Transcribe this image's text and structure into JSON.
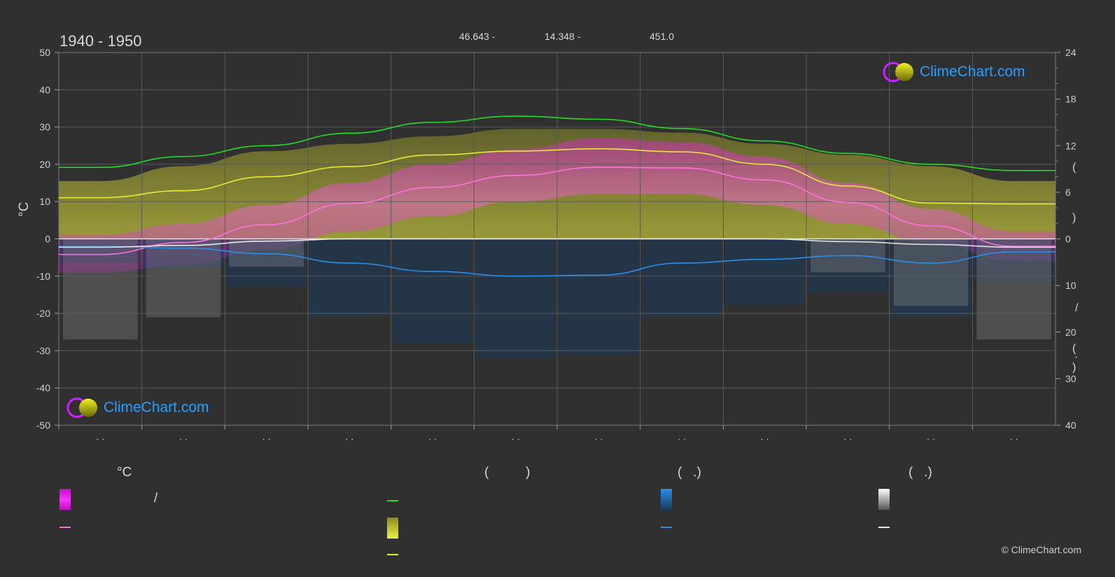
{
  "header": {
    "period": "1940 - 1950",
    "lat": "46.643 -",
    "lon": "14.348 -",
    "elevation": "451.0"
  },
  "axes": {
    "left_label": "°C",
    "left_ticks": [
      "50",
      "40",
      "30",
      "20",
      "10",
      "0",
      "-10",
      "-20",
      "-30",
      "-40",
      "-50"
    ],
    "right_upper_ticks": [
      "24",
      "18",
      "12",
      "6",
      "0"
    ],
    "right_lower_ticks": [
      "10",
      "20",
      "30",
      "40"
    ],
    "right_labels": [
      "(",
      ")",
      "(",
      ")",
      "/",
      "(",
      "·",
      ")"
    ],
    "month_labels": [
      "· ·",
      "· ·",
      "· ·",
      "· ·",
      "· ·",
      "· ·",
      "· ·",
      "· ·",
      "· ·",
      "· ·",
      "· ·",
      "· ·"
    ]
  },
  "legend": {
    "temp_header": "°C",
    "sun_header": "(          )",
    "rain_header": "(   .)",
    "snow_header": "(   .)",
    "temp_slash": "/"
  },
  "branding": {
    "logo_text": "ClimeChart.com",
    "copyright": "© ClimeChart.com"
  },
  "colors": {
    "background": "#303030",
    "daylight": "#22dd22",
    "sunshine": "#e8e83a",
    "temp_mean": "#ff70e0",
    "temp_band": "#e020d0",
    "rain": "#2a8ee8",
    "snow": "#e8e8e8",
    "logo": "#2a9fff"
  },
  "chart_data": {
    "type": "line",
    "x": [
      "1",
      "2",
      "3",
      "4",
      "5",
      "6",
      "7",
      "8",
      "9",
      "10",
      "11",
      "12"
    ],
    "y_left_range": [
      -50,
      50
    ],
    "y_right_upper_range": [
      0,
      24
    ],
    "y_right_lower_range": [
      0,
      40
    ],
    "grid": true,
    "series": [
      {
        "name": "daylight",
        "axis": "right_upper",
        "values": [
          9.2,
          10.6,
          12.0,
          13.6,
          15.0,
          15.8,
          15.4,
          14.2,
          12.6,
          11.0,
          9.6,
          8.8
        ]
      },
      {
        "name": "sunshine",
        "axis": "right_upper",
        "values": [
          5.3,
          6.2,
          8.0,
          9.3,
          10.8,
          11.3,
          11.6,
          11.2,
          9.6,
          6.8,
          4.6,
          4.5
        ]
      },
      {
        "name": "temp_mean",
        "axis": "left",
        "values": [
          -4.2,
          -1.0,
          3.8,
          9.5,
          13.8,
          17.0,
          19.2,
          19.0,
          15.8,
          9.8,
          3.5,
          -2.0
        ]
      },
      {
        "name": "rain",
        "axis": "right_lower",
        "values": [
          1.6,
          2.0,
          3.2,
          5.2,
          7.0,
          8.0,
          7.8,
          5.2,
          4.4,
          3.6,
          5.2,
          2.8
        ]
      },
      {
        "name": "snow",
        "axis": "right_lower",
        "values": [
          1.8,
          1.4,
          0.5,
          0.0,
          0.0,
          0.0,
          0.0,
          0.0,
          0.0,
          0.6,
          1.2,
          1.8
        ]
      }
    ],
    "temp_band_max": [
      1,
      4,
      9,
      15,
      20,
      24,
      27,
      26,
      22,
      15,
      8,
      2
    ],
    "temp_band_min": [
      -9,
      -7,
      -3,
      2,
      6,
      10,
      12,
      12,
      9,
      4,
      -1,
      -6
    ],
    "sunshine_band_top": [
      15.5,
      19.5,
      23.5,
      25.5,
      27.5,
      29.5,
      29.5,
      28.5,
      25.5,
      22.5,
      19.5,
      15.5
    ]
  }
}
